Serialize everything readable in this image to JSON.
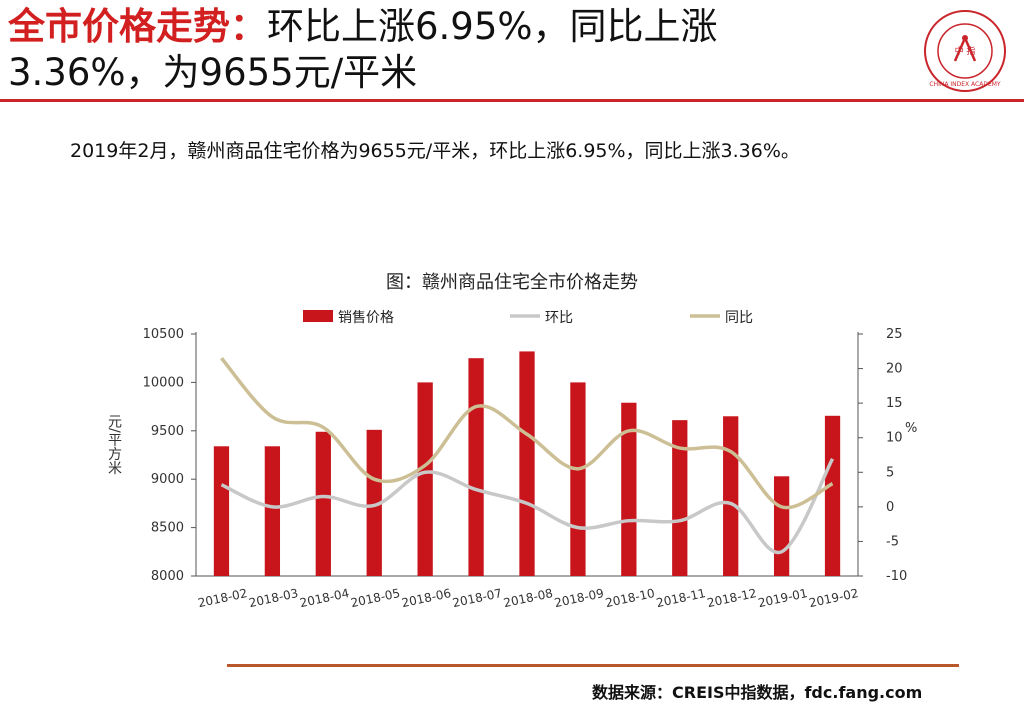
{
  "header": {
    "title_highlight": "全市价格走势：",
    "title_rest_line1": "环比上涨6.95%，同比上涨",
    "title_line2": "3.36%，为9655元/平米",
    "logo_text": "中 指",
    "logo_ring_text": "CHINA INDEX ACADEMY"
  },
  "summary": "2019年2月，赣州商品住宅价格为9655元/平米，环比上涨6.95%，同比上涨3.36%。",
  "source": "数据来源：CREIS中指数据，fdc.fang.com",
  "colors": {
    "bar": "#c8141b",
    "mom": "#c8c8c8",
    "yoy": "#cdbf95",
    "accent": "#c9252b",
    "footer_rule": "#b8572a"
  },
  "chart_data": {
    "type": "bar",
    "title": "图：赣州商品住宅全市价格走势",
    "categories": [
      "2018-02",
      "2018-03",
      "2018-04",
      "2018-05",
      "2018-06",
      "2018-07",
      "2018-08",
      "2018-09",
      "2018-10",
      "2018-11",
      "2018-12",
      "2019-01",
      "2019-02"
    ],
    "series": [
      {
        "name": "销售价格",
        "type": "bar",
        "axis": "left",
        "values": [
          9340,
          9340,
          9490,
          9510,
          10000,
          10250,
          10320,
          10000,
          9790,
          9610,
          9650,
          9030,
          9655
        ]
      },
      {
        "name": "环比",
        "type": "line",
        "axis": "right",
        "values": [
          3.2,
          0.0,
          1.5,
          0.2,
          5.0,
          2.5,
          0.5,
          -3.0,
          -2.0,
          -2.0,
          0.5,
          -6.5,
          6.95
        ]
      },
      {
        "name": "同比",
        "type": "line",
        "axis": "right",
        "values": [
          21.5,
          13.0,
          11.5,
          4.0,
          6.0,
          14.5,
          10.5,
          5.5,
          11.0,
          8.5,
          8.0,
          0.0,
          3.36
        ]
      }
    ],
    "ylabel": "元/平方米",
    "y2label": "%",
    "ylim": [
      8000,
      10500
    ],
    "yticks": [
      "10500",
      "10000",
      "9500",
      "9000",
      "8500",
      "8000"
    ],
    "y2lim": [
      -10,
      25
    ],
    "y2ticks": [
      "25",
      "20",
      "15",
      "10",
      "5",
      "0",
      "-5",
      "-10"
    ],
    "legend_position": "top",
    "grid": false
  }
}
